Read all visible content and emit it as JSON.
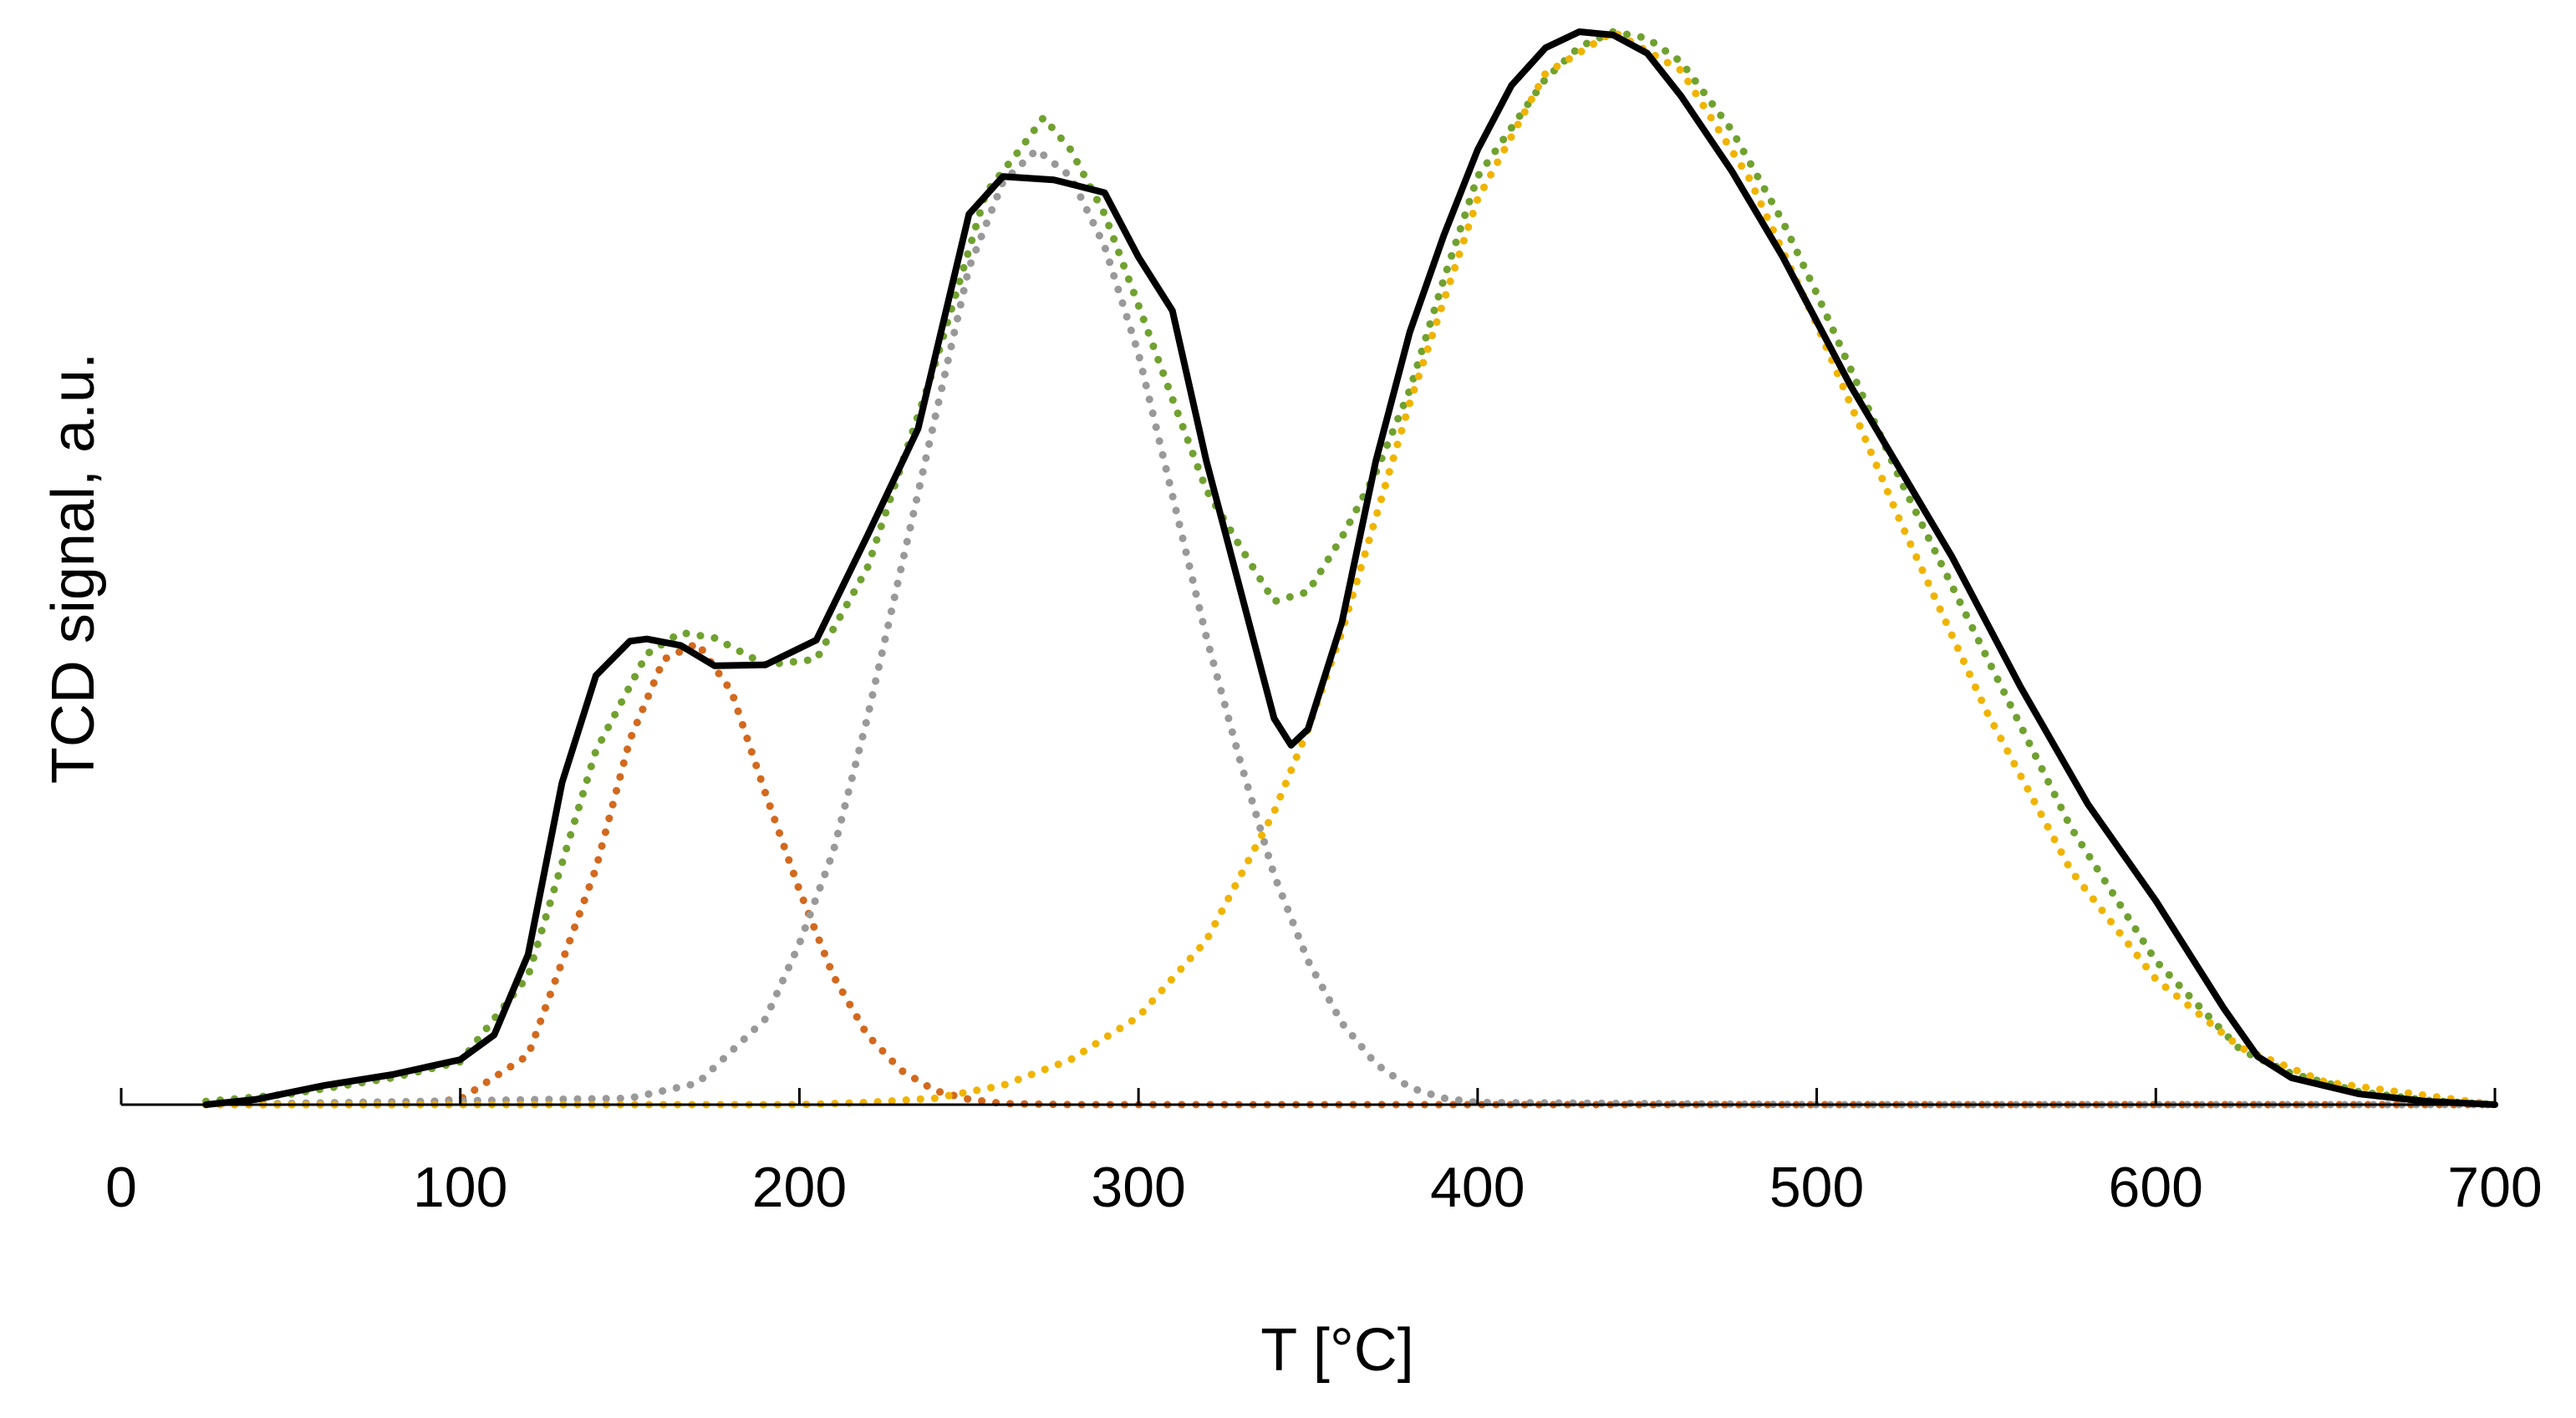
{
  "chart_data": {
    "type": "line",
    "title": "",
    "xlabel": "T [°C]",
    "ylabel": "TCD signal,  a.u.",
    "xlim": [
      0,
      700
    ],
    "ylim": [
      0,
      100
    ],
    "xticks": [
      0,
      100,
      200,
      300,
      400,
      500,
      600,
      700
    ],
    "grid": false,
    "legend": "none",
    "series": [
      {
        "style": "solid",
        "color": "#000000",
        "x": [
          25,
          40,
          60,
          80,
          100,
          110,
          120,
          130,
          140,
          150,
          155,
          165,
          175,
          190,
          205,
          220,
          235,
          250,
          260,
          275,
          290,
          300,
          310,
          320,
          330,
          340,
          345,
          350,
          360,
          370,
          380,
          390,
          400,
          410,
          420,
          430,
          440,
          450,
          460,
          475,
          490,
          500,
          510,
          525,
          540,
          560,
          580,
          600,
          620,
          630,
          640,
          660,
          680,
          700
        ],
        "y": [
          0,
          0.5,
          1.8,
          2.8,
          4.2,
          6.5,
          14,
          30,
          40,
          43.2,
          43.4,
          42.8,
          40.9,
          41,
          43.3,
          53,
          63,
          83,
          86.5,
          86.2,
          85,
          79,
          74,
          60,
          48,
          36,
          33.5,
          35,
          45,
          60,
          72,
          81,
          89,
          95,
          98.5,
          100,
          99.7,
          98,
          94,
          87,
          79,
          73,
          67,
          59,
          51,
          39,
          28,
          19,
          9,
          4.5,
          2.5,
          1,
          0.3,
          0
        ]
      },
      {
        "style": "dotted",
        "color": "#70a130",
        "x": [
          25,
          50,
          80,
          100,
          120,
          140,
          155,
          165,
          175,
          190,
          205,
          220,
          240,
          255,
          265,
          272,
          280,
          290,
          300,
          310,
          320,
          330,
          340,
          350,
          360,
          370,
          380,
          390,
          400,
          420,
          430,
          440,
          450,
          460,
          475,
          490,
          500,
          525,
          550,
          575,
          600,
          625,
          640,
          660,
          680,
          700
        ],
        "y": [
          0.3,
          1,
          2.5,
          4,
          12,
          33,
          42,
          44,
          43.5,
          41,
          41.5,
          50,
          69,
          85,
          89,
          92,
          89,
          83,
          74.5,
          65.8,
          57.3,
          52,
          46.9,
          47.8,
          52.9,
          58.9,
          66.6,
          76.9,
          86.5,
          95.6,
          98.6,
          100,
          99.4,
          97.2,
          90.8,
          82.3,
          75.6,
          58,
          41.8,
          25.8,
          13.4,
          5.1,
          2.9,
          1.2,
          0.4,
          0
        ]
      },
      {
        "style": "dotted",
        "color": "#d2691e",
        "x": [
          100,
          120,
          140,
          150,
          160,
          170,
          180,
          190,
          200,
          210,
          220,
          230,
          240,
          250,
          260,
          280,
          300,
          400,
          500,
          600,
          700
        ],
        "y": [
          0.5,
          4.6,
          22,
          34,
          41.5,
          43,
          38.5,
          29,
          20,
          12,
          6.5,
          3.2,
          1.3,
          0.5,
          0.1,
          0,
          0,
          0,
          0,
          0,
          0
        ],
        "x_prefix": [
          25,
          50,
          80
        ],
        "y_prefix": [
          0,
          0,
          0
        ]
      },
      {
        "style": "dotted",
        "color": "#999999",
        "x": [
          25,
          150,
          170,
          190,
          200,
          210,
          220,
          230,
          240,
          250,
          260,
          270,
          280,
          290,
          300,
          310,
          320,
          330,
          340,
          350,
          360,
          370,
          380,
          390,
          400,
          500,
          600,
          700
        ],
        "y": [
          0,
          0.6,
          2,
          8,
          15,
          23.6,
          36,
          50,
          64,
          78,
          86,
          89,
          86.5,
          80,
          70,
          56.8,
          43.6,
          32,
          21.4,
          13.4,
          7.6,
          3.8,
          1.6,
          0.6,
          0.2,
          0,
          0,
          0
        ],
        "x_prefix": [],
        "y_prefix": []
      },
      {
        "style": "dotted",
        "color": "#f0b400",
        "x": [
          25,
          200,
          220,
          240,
          260,
          280,
          300,
          320,
          340,
          350,
          360,
          380,
          400,
          420,
          440,
          460,
          480,
          500,
          525,
          550,
          575,
          600,
          625,
          650,
          700
        ],
        "y": [
          0,
          0,
          0.2,
          0.6,
          1.8,
          4.2,
          8.2,
          15.3,
          27.3,
          35,
          44.1,
          65.4,
          84.4,
          96.1,
          100,
          96.4,
          86.4,
          72.7,
          54.1,
          36.7,
          21.8,
          11.7,
          5.3,
          2.1,
          0
        ]
      }
    ]
  }
}
